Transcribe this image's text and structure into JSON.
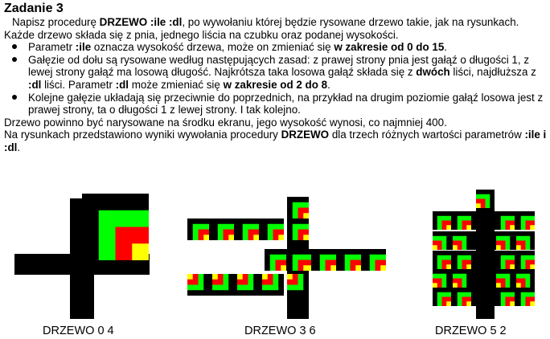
{
  "title": "Zadanie 3",
  "intro": [
    {
      "t": "Napisz procedurę "
    },
    {
      "t": "DRZEWO :ile :dl",
      "b": true
    },
    {
      "t": ", po wywołaniu której będzie rysowane drzewo takie, jak na rysunkach."
    }
  ],
  "para2": [
    {
      "t": "Każde drzewo składa się z pnia, jednego liścia na czubku oraz podanej wysokości."
    }
  ],
  "bullets": [
    [
      {
        "t": "Parametr "
      },
      {
        "t": ":ile",
        "b": true
      },
      {
        "t": " oznacza wysokość drzewa, może on zmieniać się "
      },
      {
        "t": "w zakresie od 0 do 15",
        "b": true
      },
      {
        "t": "."
      }
    ],
    [
      {
        "t": "Gałęzie od dołu są rysowane według następujących zasad: z prawej strony pnia jest gałąź o długości 1, z lewej strony gałąź ma losową długość. Najkrótsza taka losowa gałąź składa się z "
      },
      {
        "t": "dwóch",
        "b": true
      },
      {
        "t": " liści, najdłuższa z "
      },
      {
        "t": ":dl",
        "b": true
      },
      {
        "t": " liści. Parametr "
      },
      {
        "t": ":dl",
        "b": true
      },
      {
        "t": " może zmieniać się "
      },
      {
        "t": "w zakresie od 2 do 8",
        "b": true
      },
      {
        "t": "."
      }
    ],
    [
      {
        "t": "Kolejne gałęzie układają się przeciwnie do poprzednich, na przykład na drugim poziomie gałąź losowa jest z prawej strony, ta o długości 1 z lewej strony. I tak kolejno."
      }
    ]
  ],
  "para3": [
    {
      "t": "Drzewo powinno być narysowane na środku ekranu, jego wysokość wynosi, co najmniej 400."
    }
  ],
  "para4": [
    {
      "t": "Na rysunkach przedstawiono wyniki wywołania procedury "
    },
    {
      "t": "DRZEWO",
      "b": true
    },
    {
      "t": " dla trzech różnych wartości parametrów "
    },
    {
      "t": ":ile i :dl",
      "b": true
    },
    {
      "t": "."
    }
  ],
  "captions": [
    "DRZEWO 0 4",
    "DRZEWO 3 6",
    "DRZEWO 5 2"
  ],
  "colors": {
    "black": "#000000",
    "green": "#00ff00",
    "red": "#ff0000",
    "yellow": "#ffff00",
    "background": "#ffffff"
  }
}
